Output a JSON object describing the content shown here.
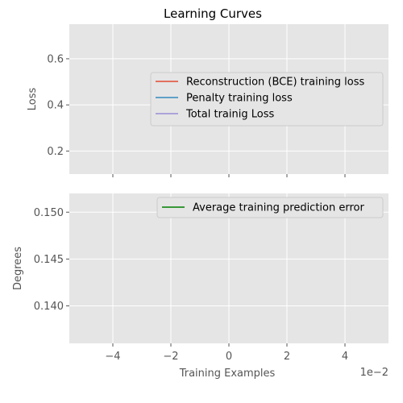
{
  "chart_data": [
    {
      "type": "line",
      "title": "Learning Curves",
      "ylabel": "Loss",
      "xlabel": "",
      "xlim": [
        -0.055,
        0.055
      ],
      "ylim": [
        0.1,
        0.75
      ],
      "xticks": [
        -0.04,
        -0.02,
        0,
        0.02,
        0.04
      ],
      "xtick_labels": [
        "",
        "",
        "",
        "",
        ""
      ],
      "yticks": [
        0.2,
        0.4,
        0.6
      ],
      "ytick_labels": [
        "0.2",
        "0.4",
        "0.6"
      ],
      "grid": true,
      "legend": "center-right",
      "series": [
        {
          "name": "Reconstruction (BCE) training loss",
          "color": "#E24A33",
          "x": [],
          "y": []
        },
        {
          "name": "Penalty training loss",
          "color": "#348ABD",
          "x": [],
          "y": []
        },
        {
          "name": "Total trainig Loss",
          "color": "#988ED5",
          "x": [],
          "y": []
        }
      ]
    },
    {
      "type": "line",
      "title": "",
      "ylabel": "Degrees",
      "xlabel": "Training Examples",
      "x_offset_label": "1e−2",
      "xlim": [
        -0.055,
        0.055
      ],
      "ylim": [
        0.136,
        0.152
      ],
      "xticks": [
        -0.04,
        -0.02,
        0,
        0.02,
        0.04
      ],
      "xtick_labels": [
        "−4",
        "−2",
        "0",
        "2",
        "4"
      ],
      "yticks": [
        0.14,
        0.145,
        0.15
      ],
      "ytick_labels": [
        "0.140",
        "0.145",
        "0.150"
      ],
      "grid": true,
      "legend": "upper-right",
      "series": [
        {
          "name": "Average training prediction error",
          "color": "#008000",
          "x": [],
          "y": []
        }
      ]
    }
  ]
}
